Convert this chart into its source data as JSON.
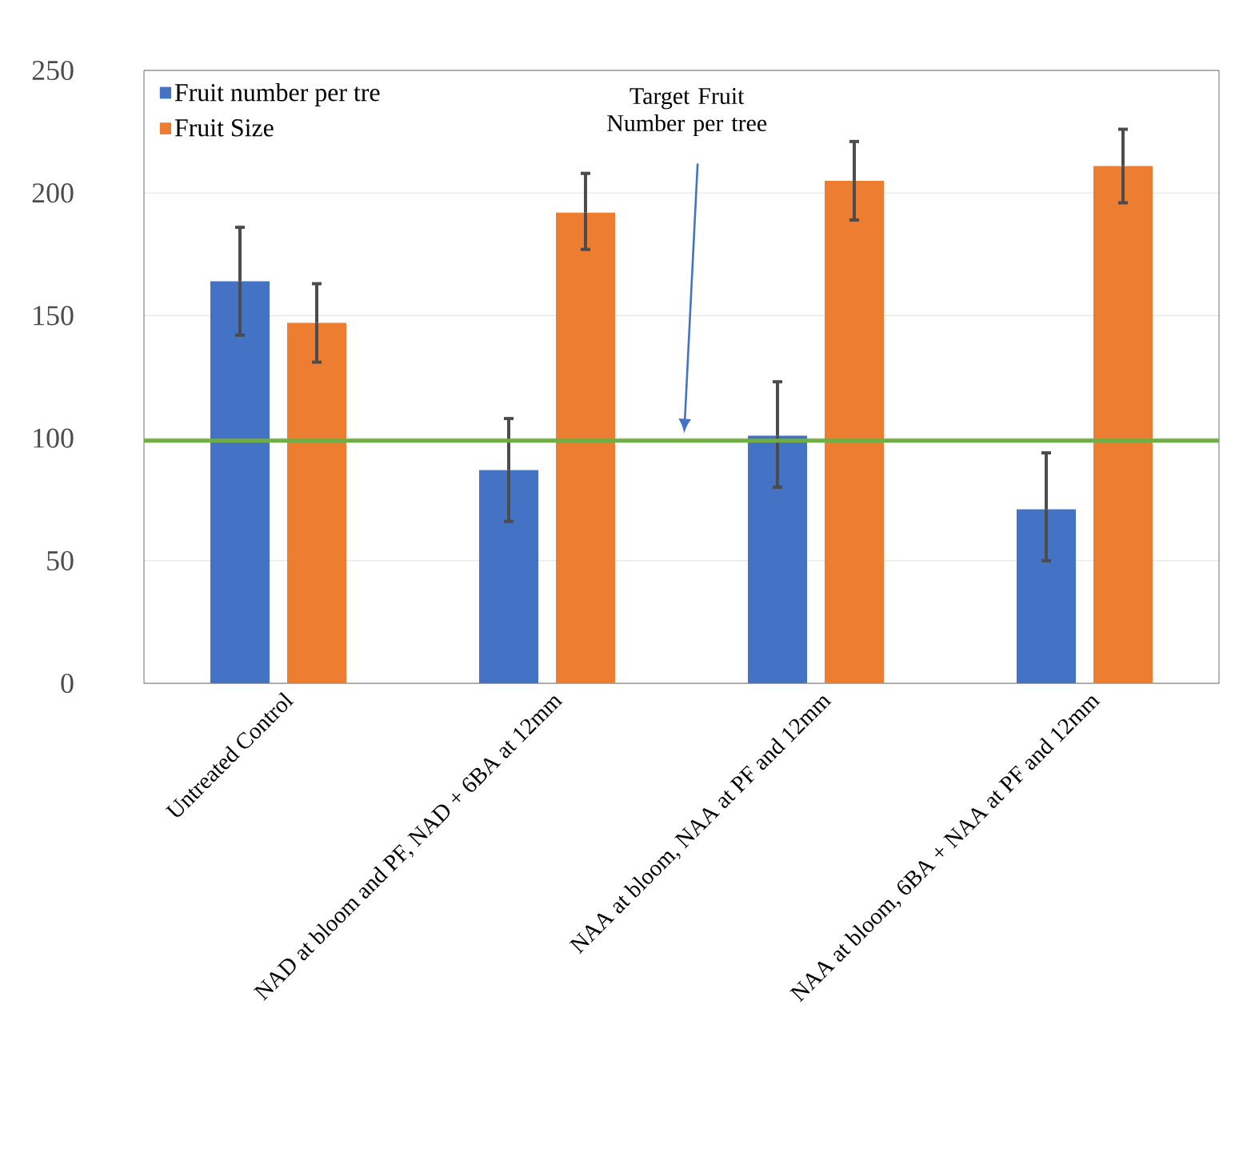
{
  "chart_data": {
    "type": "bar",
    "categories": [
      "Untreated Control",
      "NAD at bloom and PF, NAD + 6BA at 12mm",
      "NAA at bloom, NAA at PF and 12mm",
      "NAA at bloom, 6BA + NAA at PF and 12mm"
    ],
    "series": [
      {
        "name": "Fruit number per tre",
        "color": "#4472c4",
        "values": [
          164,
          87,
          101,
          71
        ],
        "errors": [
          [
            142,
            186
          ],
          [
            66,
            108
          ],
          [
            80,
            123
          ],
          [
            50,
            94
          ]
        ]
      },
      {
        "name": "Fruit Size",
        "color": "#ed7d31",
        "values": [
          147,
          192,
          205,
          211
        ],
        "errors": [
          [
            131,
            163
          ],
          [
            177,
            208
          ],
          [
            189,
            221
          ],
          [
            196,
            226
          ]
        ]
      }
    ],
    "ylim": [
      0,
      250
    ],
    "yticks": [
      0,
      50,
      100,
      150,
      200,
      250
    ],
    "grid": "y",
    "legend": "top left",
    "annotations": [
      "Target Fruit Number per tree"
    ],
    "ref_lines": [
      {
        "axis": "y",
        "value": 99,
        "color": "#70ad47"
      }
    ]
  }
}
